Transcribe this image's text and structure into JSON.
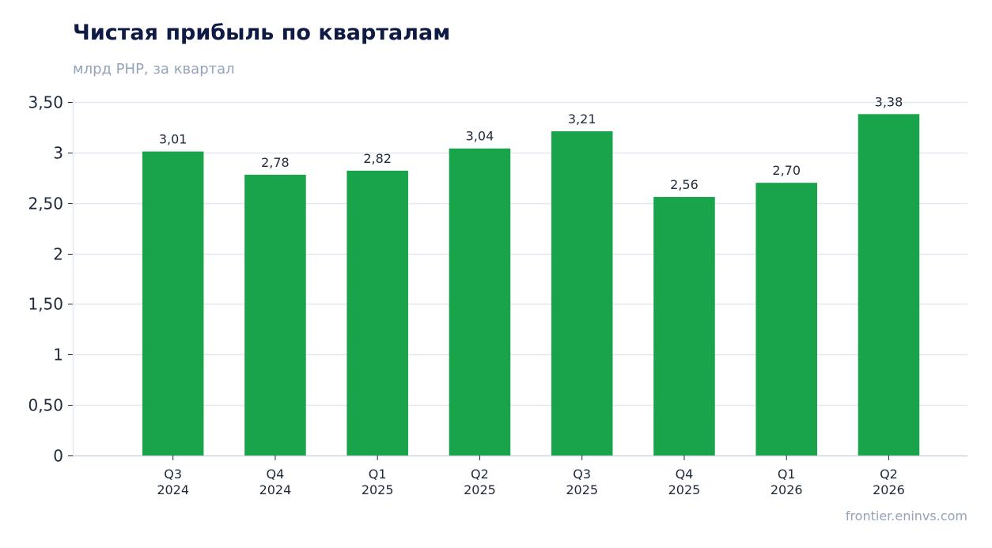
{
  "title": "Чистая прибыль по кварталам",
  "subtitle": "млрд РНР, за квартал",
  "source": "frontier.eninvs.com",
  "colors": {
    "bar": "#19a34a",
    "grid": "#e2e8f0",
    "axis": "#cbd5e1",
    "text": "#1e293b",
    "title": "#0f1b45",
    "muted": "#94a3b8"
  },
  "chart_data": {
    "type": "bar",
    "title": "Чистая прибыль по кварталам",
    "subtitle": "млрд РНР, за квартал",
    "categories": [
      [
        "Q3",
        "2024"
      ],
      [
        "Q4",
        "2024"
      ],
      [
        "Q1",
        "2025"
      ],
      [
        "Q2",
        "2025"
      ],
      [
        "Q3",
        "2025"
      ],
      [
        "Q4",
        "2025"
      ],
      [
        "Q1",
        "2026"
      ],
      [
        "Q2",
        "2026"
      ]
    ],
    "values": [
      3.01,
      2.78,
      2.82,
      3.04,
      3.21,
      2.56,
      2.7,
      3.38
    ],
    "data_labels": [
      "3,01",
      "2,78",
      "2,82",
      "3,04",
      "3,21",
      "2,56",
      "2,70",
      "3,38"
    ],
    "y_ticks": [
      0,
      0.5,
      1,
      1.5,
      2,
      2.5,
      3,
      3.5
    ],
    "y_tick_labels": [
      "0",
      "0,50",
      "1",
      "1,50",
      "2",
      "2,50",
      "3",
      "3,50"
    ],
    "ylim": [
      0,
      3.5
    ],
    "grid": true,
    "legend": "none"
  }
}
